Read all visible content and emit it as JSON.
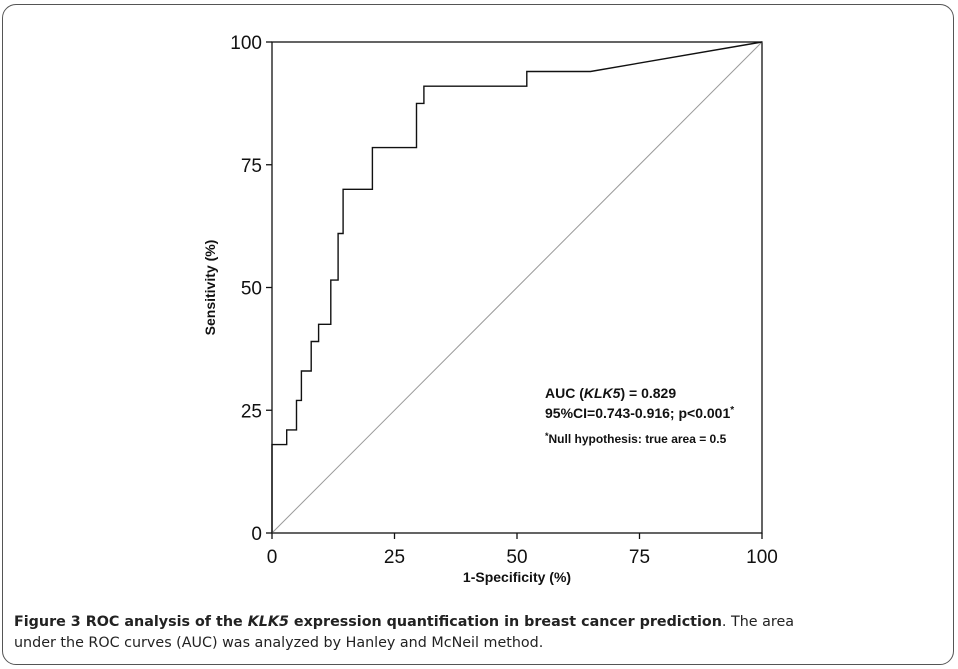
{
  "chart_data": {
    "type": "line",
    "xlabel": "1-Specificity (%)",
    "ylabel": "Sensitivity (%)",
    "xlim": [
      0,
      100
    ],
    "ylim": [
      0,
      100
    ],
    "x_ticks": [
      "0",
      "25",
      "50",
      "75",
      "100"
    ],
    "y_ticks": [
      "0",
      "25",
      "50",
      "75",
      "100"
    ],
    "grid": false,
    "series": [
      {
        "values": [
          [
            0,
            0
          ],
          [
            0,
            18
          ],
          [
            3,
            18
          ],
          [
            3,
            21
          ],
          [
            5,
            21
          ],
          [
            5,
            27
          ],
          [
            6,
            27
          ],
          [
            6,
            33
          ],
          [
            8,
            33
          ],
          [
            8,
            39
          ],
          [
            9.5,
            39
          ],
          [
            9.5,
            42.5
          ],
          [
            12,
            42.5
          ],
          [
            12,
            51.5
          ],
          [
            13.5,
            51.5
          ],
          [
            13.5,
            61
          ],
          [
            14.5,
            61
          ],
          [
            14.5,
            70
          ],
          [
            20.5,
            70
          ],
          [
            20.5,
            78.5
          ],
          [
            29.5,
            78.5
          ],
          [
            29.5,
            87.5
          ],
          [
            31,
            87.5
          ],
          [
            31,
            91
          ],
          [
            52,
            91
          ],
          [
            52,
            94
          ],
          [
            65,
            94
          ],
          [
            100,
            100
          ]
        ]
      },
      {
        "values": [
          [
            0,
            0
          ],
          [
            100,
            100
          ]
        ]
      }
    ],
    "annotations": [
      {
        "prefix": "AUC (",
        "italic": "KLK5",
        "suffix": ") = 0.829"
      },
      {
        "text": "95%CI=0.743-0.916; p<0.001",
        "sup": "*"
      },
      {
        "sup": "*",
        "text": "Null hypothesis: true area = 0.5"
      }
    ]
  },
  "caption": {
    "label": "Figure 3",
    "title_before": "ROC analysis of the ",
    "title_italic": "KLK5",
    "title_after": " expression quantification in breast cancer prediction",
    "body_line1": ". The area",
    "body_line2": "under the ROC curves (AUC) was analyzed by Hanley and McNeil method."
  },
  "colors": {
    "curve": "#111111",
    "reference_line": "#9a9a9a",
    "axes": "#111111",
    "frame": "#555555"
  }
}
